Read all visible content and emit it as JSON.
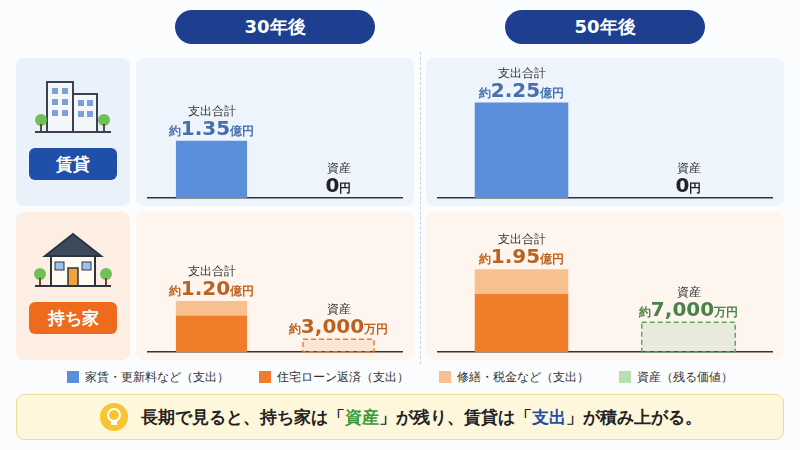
{
  "periods": [
    "30年後",
    "50年後"
  ],
  "housing": [
    {
      "label": "賃貸",
      "color": "#1f4fa8"
    },
    {
      "label": "持ち家",
      "color": "#ee6a1c"
    }
  ],
  "chart_data": [
    {
      "type": "bar",
      "stacked": true,
      "categories": [
        "支出合計",
        "資産"
      ],
      "series": [
        {
          "name": "家賃・更新料など（支出）",
          "color": "#5b8fdb",
          "values": [
            1.35,
            null
          ]
        },
        {
          "name": "資産（残る価値）",
          "color": "#5b8fdb",
          "line_style": "dashed",
          "values": [
            null,
            0
          ]
        }
      ],
      "value_labels": [
        "約1.35億円",
        "0円"
      ],
      "data_labels": true,
      "ylim": [
        0,
        2.5
      ],
      "yticks": [
        0,
        0.5,
        1,
        1.5,
        2,
        2.5
      ],
      "grid": false,
      "tick_labels": false
    },
    {
      "type": "bar",
      "stacked": true,
      "categories": [
        "支出合計",
        "資産"
      ],
      "series": [
        {
          "name": "家賃・更新料など（支出）",
          "color": "#5b8fdb",
          "values": [
            2.25,
            null
          ]
        },
        {
          "name": "資産（残る価値）",
          "color": "#5b8fdb",
          "line_style": "dashed",
          "values": [
            null,
            0
          ]
        }
      ],
      "value_labels": [
        "約2.25億円",
        "0円"
      ],
      "data_labels": true,
      "ylim": [
        0,
        2.5
      ],
      "yticks": [
        0,
        0.5,
        1,
        1.5,
        2,
        2.5
      ],
      "grid": false,
      "tick_labels": false
    },
    {
      "type": "bar",
      "stacked": true,
      "categories": [
        "支出合計",
        "資産"
      ],
      "series": [
        {
          "name": "住宅ローン返済（支出）",
          "color": "#f07d2a",
          "values": [
            0.86,
            null
          ]
        },
        {
          "name": "修繕・税金など（支出）",
          "color": "#f9c08f",
          "values": [
            0.34,
            null
          ]
        },
        {
          "name": "資産（残る価値）",
          "color": "#f07d2a",
          "line_style": "dashed",
          "values": [
            null,
            0.3
          ]
        }
      ],
      "value_labels": [
        "約1.20億円",
        "約3,000万円"
      ],
      "data_labels": true,
      "ylim": [
        0,
        2.5
      ],
      "yticks": [
        0,
        0.5,
        1,
        1.5,
        2,
        2.5
      ],
      "grid": false,
      "tick_labels": false
    },
    {
      "type": "bar",
      "stacked": true,
      "categories": [
        "支出合計",
        "資産"
      ],
      "series": [
        {
          "name": "住宅ローン返済（支出）",
          "color": "#f07d2a",
          "values": [
            1.37,
            null
          ]
        },
        {
          "name": "修繕・税金など（支出）",
          "color": "#f9c08f",
          "values": [
            0.58,
            null
          ]
        },
        {
          "name": "資産（残る価値）",
          "color": "#5aa85a",
          "line_style": "dashed",
          "values": [
            null,
            0.7
          ]
        }
      ],
      "value_labels": [
        "約1.95億円",
        "約7,000万円"
      ],
      "data_labels": true,
      "ylim": [
        0,
        2.5
      ],
      "yticks": [
        0,
        0.5,
        1,
        1.5,
        2,
        2.5
      ],
      "grid": false,
      "tick_labels": false
    }
  ],
  "legend_items": [
    {
      "name": "家賃・更新料など（支出）",
      "color": "#5b8fdb"
    },
    {
      "name": "住宅ローン返済（支出）",
      "color": "#f07d2a"
    },
    {
      "name": "修繕・税金など（支出）",
      "color": "#f9c08f"
    },
    {
      "name": "資産（残る価値）",
      "color": "#b9dfb0"
    }
  ],
  "footer": {
    "parts": [
      {
        "text": "長期で見ると、持ち家は「"
      },
      {
        "text": "資産",
        "color": "#3a9a3a"
      },
      {
        "text": "」が残り、賃貸は「"
      },
      {
        "text": "支出",
        "color": "#1f4fa8"
      },
      {
        "text": "」が積み上がる。"
      }
    ]
  }
}
